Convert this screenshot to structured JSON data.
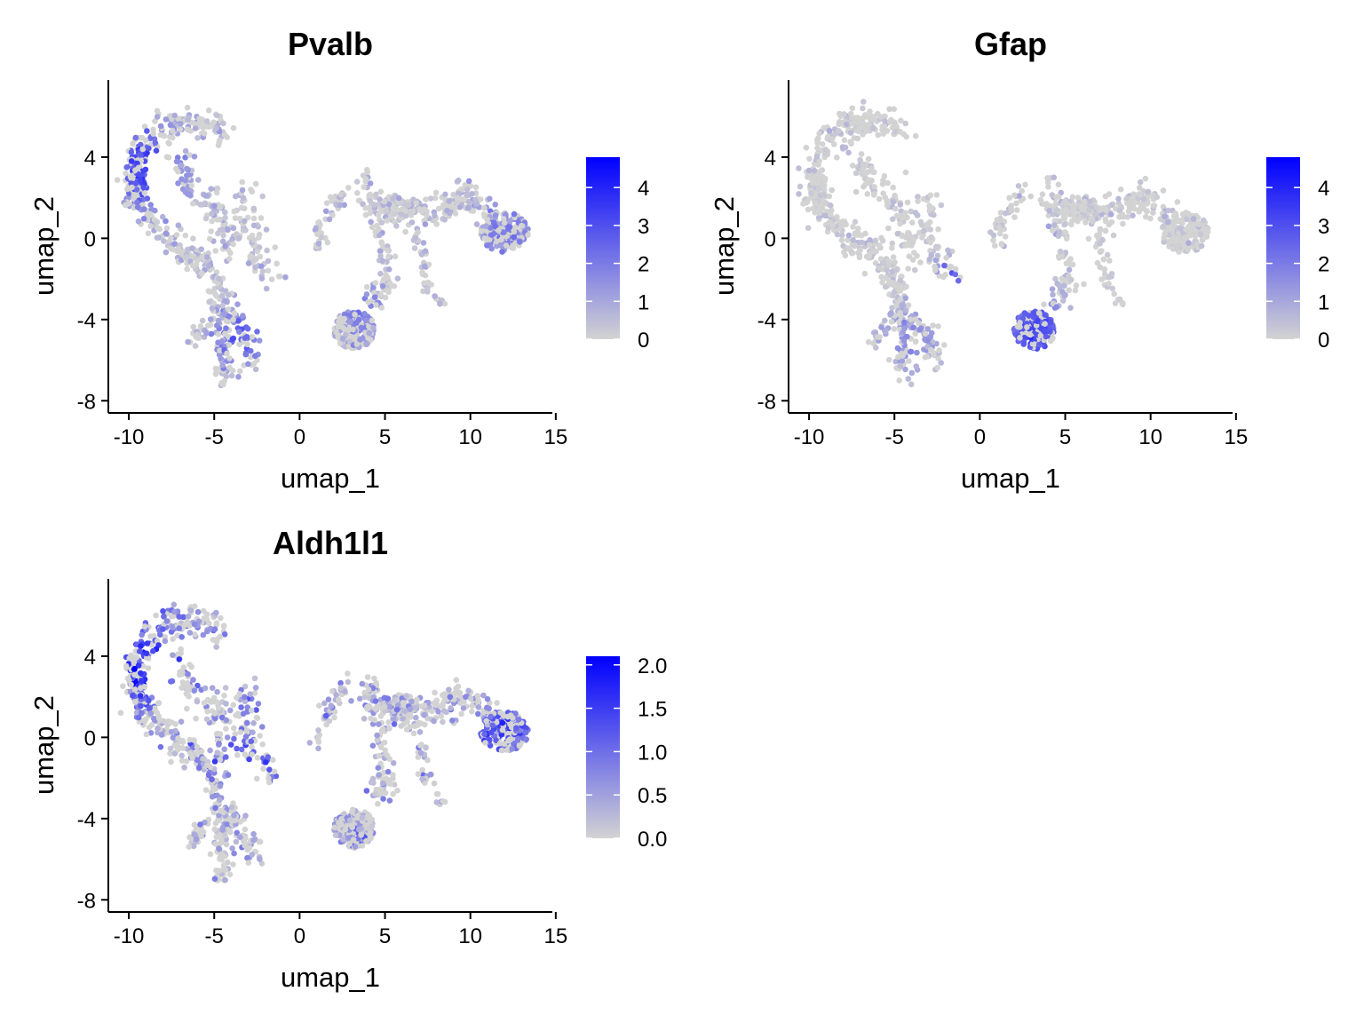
{
  "chart_data": [
    {
      "type": "scatter",
      "title": "Pvalb",
      "xlabel": "umap_1",
      "ylabel": "umap_2",
      "xlim": [
        -11.2,
        14.8
      ],
      "ylim": [
        -8.6,
        7.8
      ],
      "xticks": [
        "-10",
        "-5",
        "0",
        "5",
        "10",
        "15"
      ],
      "yticks": [
        "-8",
        "-4",
        "0",
        "4"
      ],
      "legend": {
        "placement": "right",
        "min": 0,
        "max": 4.8,
        "ticks": [
          "0",
          "1",
          "2",
          "3",
          "4"
        ],
        "low_color": "#d3d3d3",
        "high_color": "#0000ff"
      },
      "seed": 11,
      "hotspots": [
        {
          "x": -9.0,
          "y": 3.5,
          "r": 2.2,
          "v": 3.0
        },
        {
          "x": -3.6,
          "y": -5.0,
          "r": 1.6,
          "v": 2.2
        },
        {
          "x": 12.0,
          "y": 0.2,
          "r": 2.0,
          "v": 1.5
        },
        {
          "x": 3.8,
          "y": -3.8,
          "r": 1.6,
          "v": 1.4
        }
      ],
      "base_level": 0.9
    },
    {
      "type": "scatter",
      "title": "Gfap",
      "xlabel": "umap_1",
      "ylabel": "umap_2",
      "xlim": [
        -11.2,
        14.8
      ],
      "ylim": [
        -8.6,
        7.8
      ],
      "xticks": [
        "-10",
        "-5",
        "0",
        "5",
        "10",
        "15"
      ],
      "yticks": [
        "-8",
        "-4",
        "0",
        "4"
      ],
      "legend": {
        "placement": "right",
        "min": 0,
        "max": 4.8,
        "ticks": [
          "0",
          "1",
          "2",
          "3",
          "4"
        ],
        "low_color": "#d3d3d3",
        "high_color": "#0000ff"
      },
      "seed": 23,
      "hotspots": [
        {
          "x": 3.2,
          "y": -4.6,
          "r": 1.9,
          "v": 3.2
        },
        {
          "x": -1.8,
          "y": -1.8,
          "r": 0.8,
          "v": 3.0
        },
        {
          "x": 3.6,
          "y": 0.0,
          "r": 0.7,
          "v": 2.8
        },
        {
          "x": -4.0,
          "y": -5.0,
          "r": 1.8,
          "v": 1.4
        }
      ],
      "base_level": 0.35
    },
    {
      "type": "scatter",
      "title": "Aldh1l1",
      "xlabel": "umap_1",
      "ylabel": "umap_2",
      "xlim": [
        -11.2,
        14.8
      ],
      "ylim": [
        -8.6,
        7.8
      ],
      "xticks": [
        "-10",
        "-5",
        "0",
        "5",
        "10",
        "15"
      ],
      "yticks": [
        "-8",
        "-4",
        "0",
        "4"
      ],
      "legend": {
        "placement": "right",
        "min": 0,
        "max": 2.1,
        "ticks": [
          "0.0",
          "0.5",
          "1.0",
          "1.5",
          "2.0"
        ],
        "low_color": "#d3d3d3",
        "high_color": "#0000ff"
      },
      "seed": 37,
      "hotspots": [
        {
          "x": -9.0,
          "y": 3.5,
          "r": 2.0,
          "v": 1.3
        },
        {
          "x": 12.0,
          "y": 0.5,
          "r": 1.8,
          "v": 1.0
        },
        {
          "x": -3.0,
          "y": -1.0,
          "r": 2.0,
          "v": 0.9
        }
      ],
      "base_level": 0.7
    }
  ]
}
